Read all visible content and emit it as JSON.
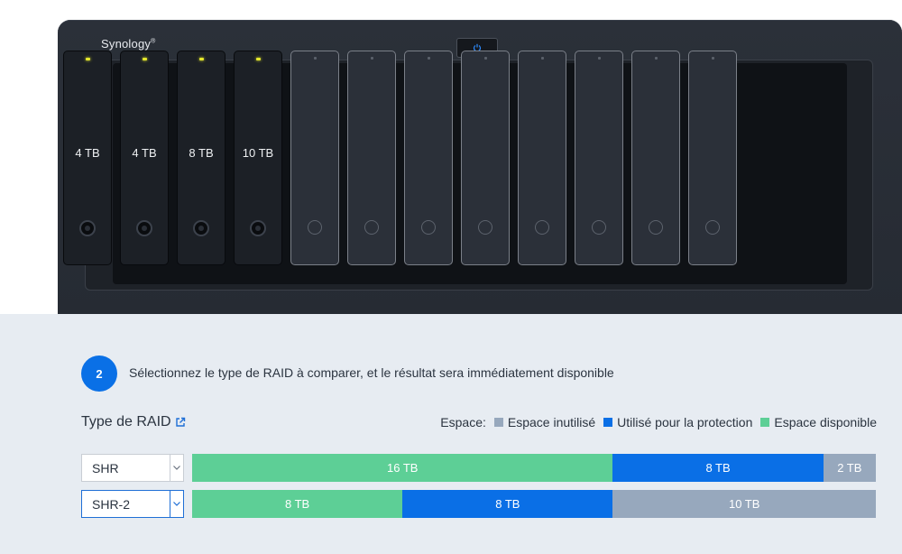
{
  "device": {
    "brand": "Synology",
    "brand_mark": "®",
    "power_icon": "power-icon",
    "bays": [
      {
        "status": "filled",
        "capacity": "4 TB"
      },
      {
        "status": "filled",
        "capacity": "4 TB"
      },
      {
        "status": "filled",
        "capacity": "8 TB"
      },
      {
        "status": "filled",
        "capacity": "10 TB"
      },
      {
        "status": "empty",
        "capacity": ""
      },
      {
        "status": "empty",
        "capacity": ""
      },
      {
        "status": "empty",
        "capacity": ""
      },
      {
        "status": "empty",
        "capacity": ""
      },
      {
        "status": "empty",
        "capacity": ""
      },
      {
        "status": "empty",
        "capacity": ""
      },
      {
        "status": "empty",
        "capacity": ""
      },
      {
        "status": "empty",
        "capacity": ""
      }
    ]
  },
  "step": {
    "number": "2",
    "text": "Sélectionnez le type de RAID à comparer, et le résultat sera immédiatement disponible"
  },
  "raid_type": {
    "label": "Type de RAID",
    "icon": "external-link-icon"
  },
  "legend": {
    "title": "Espace:",
    "items": [
      {
        "label": "Espace inutilisé",
        "color": "#97a8bd"
      },
      {
        "label": "Utilisé pour la protection",
        "color": "#0a6fe6"
      },
      {
        "label": "Espace disponible",
        "color": "#5dcf96"
      }
    ]
  },
  "comparisons": [
    {
      "raid": "SHR",
      "focused": false,
      "segments": [
        {
          "kind": "available",
          "label": "16 TB",
          "value": 16,
          "color": "#5dcf96"
        },
        {
          "kind": "protection",
          "label": "8 TB",
          "value": 8,
          "color": "#0a6fe6"
        },
        {
          "kind": "unused",
          "label": "2 TB",
          "value": 2,
          "color": "#97a8bd"
        }
      ]
    },
    {
      "raid": "SHR-2",
      "focused": true,
      "segments": [
        {
          "kind": "available",
          "label": "8 TB",
          "value": 8,
          "color": "#5dcf96"
        },
        {
          "kind": "protection",
          "label": "8 TB",
          "value": 8,
          "color": "#0a6fe6"
        },
        {
          "kind": "unused",
          "label": "10 TB",
          "value": 10,
          "color": "#97a8bd"
        }
      ]
    }
  ]
}
